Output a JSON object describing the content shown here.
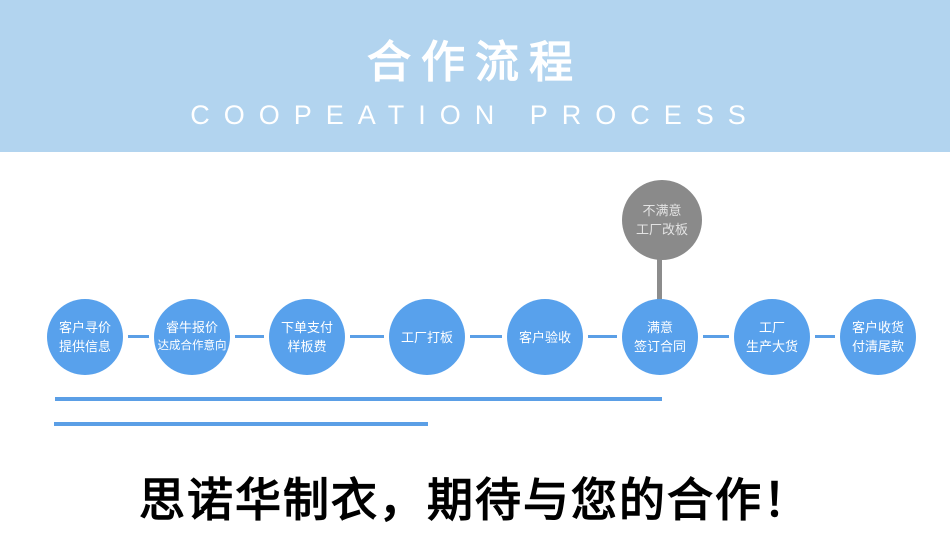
{
  "header": {
    "title": "合作流程",
    "subtitle": "COOPEATION PROCESS",
    "bg_color": "#b2d4ef",
    "text_color": "#ffffff"
  },
  "colors": {
    "step_circle_blue": "#58a1ec",
    "reject_circle_gray": "#8a8a8a",
    "connector_blue": "#5b9fe6",
    "connector_gray": "#8c8c8c",
    "slogan_black": "#000000"
  },
  "flow": {
    "reject_node": {
      "line1": "不满意",
      "line2": "工厂改板"
    },
    "steps": [
      {
        "line1": "客户寻价",
        "line2": "提供信息"
      },
      {
        "line1": "睿牛报价",
        "line2": "达成合作意向"
      },
      {
        "line1": "下单支付",
        "line2": "样板费"
      },
      {
        "line1": "工厂打板",
        "line2": ""
      },
      {
        "line1": "客户验收",
        "line2": ""
      },
      {
        "line1": "满意",
        "line2": "签订合同"
      },
      {
        "line1": "工厂",
        "line2": "生产大货"
      },
      {
        "line1": "客户收货",
        "line2": "付清尾款"
      }
    ]
  },
  "footer": {
    "slogan": "思诺华制衣，期待与您的合作！"
  }
}
